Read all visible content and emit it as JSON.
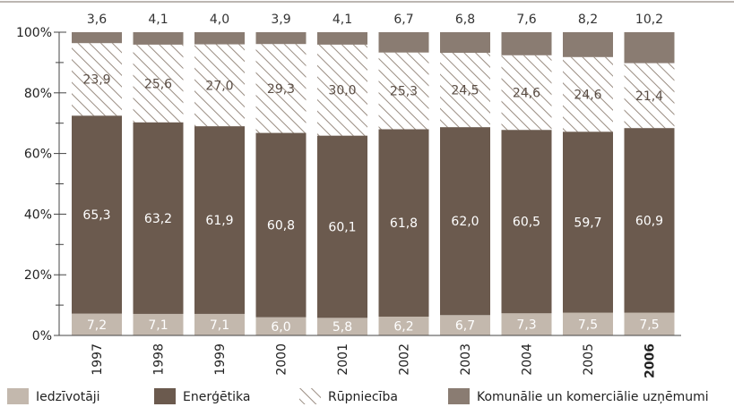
{
  "colors": {
    "residential": "#c3b8ad",
    "energy": "#6b5a4e",
    "industry_hatch": "#9a8d82",
    "commercial": "#8a7c72",
    "axis": "#444444"
  },
  "chart_data": {
    "type": "bar",
    "stacked": true,
    "categories": [
      "1997",
      "1998",
      "1999",
      "2000",
      "2001",
      "2002",
      "2003",
      "2004",
      "2005",
      "2006"
    ],
    "category_bold": [
      "2006"
    ],
    "series": [
      {
        "name": "Iedzīvotāji",
        "key": "residential",
        "values": [
          7.2,
          7.1,
          7.1,
          6.0,
          5.8,
          6.2,
          6.7,
          7.3,
          7.5,
          7.5
        ],
        "labels": [
          "7,2",
          "7,1",
          "7,1",
          "6,0",
          "5,8",
          "6,2",
          "6,7",
          "7,3",
          "7,5",
          "7,5"
        ]
      },
      {
        "name": "Enerģētika",
        "key": "energy",
        "values": [
          65.3,
          63.2,
          61.9,
          60.8,
          60.1,
          61.8,
          62.0,
          60.5,
          59.7,
          60.9
        ],
        "labels": [
          "65,3",
          "63,2",
          "61,9",
          "60,8",
          "60,1",
          "61,8",
          "62,0",
          "60,5",
          "59,7",
          "60,9"
        ]
      },
      {
        "name": "Rūpniecība",
        "key": "industry",
        "values": [
          23.9,
          25.6,
          27.0,
          29.3,
          30.0,
          25.3,
          24.5,
          24.6,
          24.6,
          21.4
        ],
        "labels": [
          "23,9",
          "25,6",
          "27,0",
          "29,3",
          "30,0",
          "25,3",
          "24,5",
          "24,6",
          "24,6",
          "21,4"
        ]
      },
      {
        "name": "Komunālie un komerciālie uzņēmumi",
        "key": "commercial",
        "values": [
          3.6,
          4.1,
          4.0,
          3.9,
          4.1,
          6.7,
          6.8,
          7.6,
          8.2,
          10.2
        ],
        "labels": [
          "3,6",
          "4,1",
          "4,0",
          "3,9",
          "4,1",
          "6,7",
          "6,8",
          "7,6",
          "8,2",
          "10,2"
        ]
      }
    ],
    "ylim": [
      0,
      100
    ],
    "yticks": [
      "0%",
      "20%",
      "40%",
      "60%",
      "80%",
      "100%"
    ],
    "ytick_values": [
      0,
      20,
      40,
      60,
      80,
      100
    ],
    "legend_position": "bottom",
    "grid": false
  },
  "legend": {
    "residential": "Iedzīvotāji",
    "energy": "Enerģētika",
    "industry": "Rūpniecība",
    "commercial": "Komunālie un komerciālie uzņēmumi"
  }
}
